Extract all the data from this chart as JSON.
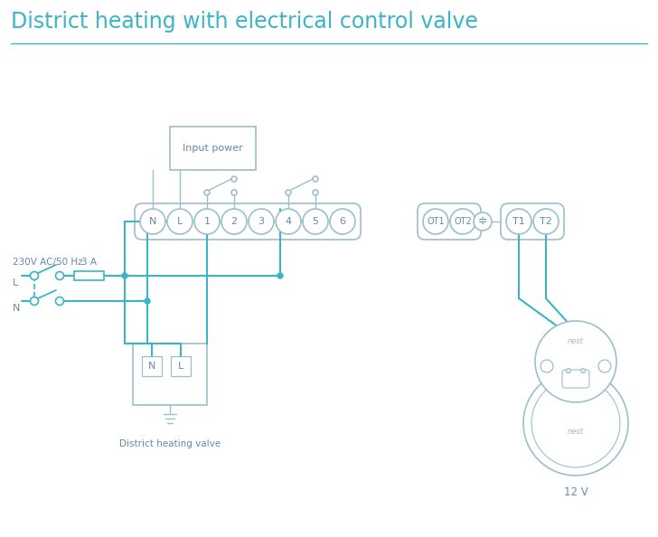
{
  "title": "District heating with electrical control valve",
  "title_color": "#3ab5c6",
  "title_fontsize": 17,
  "bg_color": "#ffffff",
  "wire_color": "#3ab5c6",
  "box_edge_color": "#9bbfcc",
  "text_color": "#6688aa",
  "label_230v": "230V AC/50 Hz",
  "label_L": "L",
  "label_N": "N",
  "label_3A": "3 A",
  "label_input_power": "Input power",
  "label_district": "District heating valve",
  "label_12v": "12 V",
  "label_nest": "nest",
  "strip1_labels": [
    "N",
    "L",
    "1",
    "2",
    "3",
    "4",
    "5",
    "6"
  ],
  "strip2_labels": [
    "OT1",
    "OT2"
  ],
  "strip3_labels": [
    "T1",
    "T2"
  ]
}
